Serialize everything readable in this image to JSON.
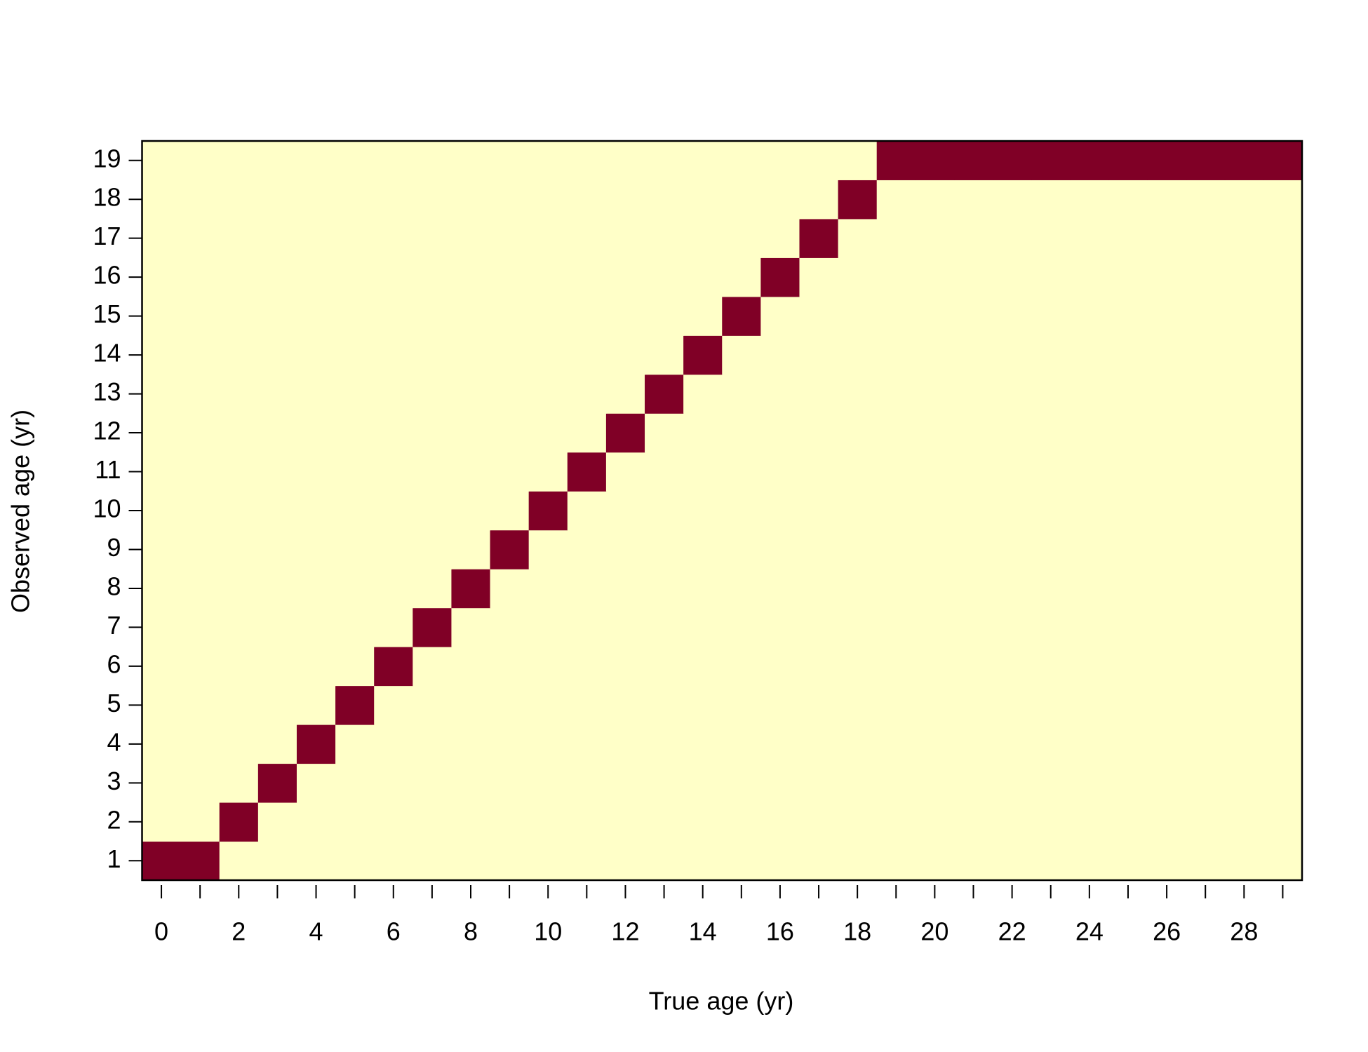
{
  "chart_data": {
    "type": "heatmap",
    "x_label": "True age (yr)",
    "y_label": "Observed age (yr)",
    "x": [
      0,
      1,
      2,
      3,
      4,
      5,
      6,
      7,
      8,
      9,
      10,
      11,
      12,
      13,
      14,
      15,
      16,
      17,
      18,
      19,
      20,
      21,
      22,
      23,
      24,
      25,
      26,
      27,
      28,
      29
    ],
    "y": [
      1,
      2,
      3,
      4,
      5,
      6,
      7,
      8,
      9,
      10,
      11,
      12,
      13,
      14,
      15,
      16,
      17,
      18,
      19
    ],
    "z": [
      [
        1,
        1,
        0,
        0,
        0,
        0,
        0,
        0,
        0,
        0,
        0,
        0,
        0,
        0,
        0,
        0,
        0,
        0,
        0,
        0,
        0,
        0,
        0,
        0,
        0,
        0,
        0,
        0,
        0,
        0
      ],
      [
        0,
        0,
        1,
        0,
        0,
        0,
        0,
        0,
        0,
        0,
        0,
        0,
        0,
        0,
        0,
        0,
        0,
        0,
        0,
        0,
        0,
        0,
        0,
        0,
        0,
        0,
        0,
        0,
        0,
        0
      ],
      [
        0,
        0,
        0,
        1,
        0,
        0,
        0,
        0,
        0,
        0,
        0,
        0,
        0,
        0,
        0,
        0,
        0,
        0,
        0,
        0,
        0,
        0,
        0,
        0,
        0,
        0,
        0,
        0,
        0,
        0
      ],
      [
        0,
        0,
        0,
        0,
        1,
        0,
        0,
        0,
        0,
        0,
        0,
        0,
        0,
        0,
        0,
        0,
        0,
        0,
        0,
        0,
        0,
        0,
        0,
        0,
        0,
        0,
        0,
        0,
        0,
        0
      ],
      [
        0,
        0,
        0,
        0,
        0,
        1,
        0,
        0,
        0,
        0,
        0,
        0,
        0,
        0,
        0,
        0,
        0,
        0,
        0,
        0,
        0,
        0,
        0,
        0,
        0,
        0,
        0,
        0,
        0,
        0
      ],
      [
        0,
        0,
        0,
        0,
        0,
        0,
        1,
        0,
        0,
        0,
        0,
        0,
        0,
        0,
        0,
        0,
        0,
        0,
        0,
        0,
        0,
        0,
        0,
        0,
        0,
        0,
        0,
        0,
        0,
        0
      ],
      [
        0,
        0,
        0,
        0,
        0,
        0,
        0,
        1,
        0,
        0,
        0,
        0,
        0,
        0,
        0,
        0,
        0,
        0,
        0,
        0,
        0,
        0,
        0,
        0,
        0,
        0,
        0,
        0,
        0,
        0
      ],
      [
        0,
        0,
        0,
        0,
        0,
        0,
        0,
        0,
        1,
        0,
        0,
        0,
        0,
        0,
        0,
        0,
        0,
        0,
        0,
        0,
        0,
        0,
        0,
        0,
        0,
        0,
        0,
        0,
        0,
        0
      ],
      [
        0,
        0,
        0,
        0,
        0,
        0,
        0,
        0,
        0,
        1,
        0,
        0,
        0,
        0,
        0,
        0,
        0,
        0,
        0,
        0,
        0,
        0,
        0,
        0,
        0,
        0,
        0,
        0,
        0,
        0
      ],
      [
        0,
        0,
        0,
        0,
        0,
        0,
        0,
        0,
        0,
        0,
        1,
        0,
        0,
        0,
        0,
        0,
        0,
        0,
        0,
        0,
        0,
        0,
        0,
        0,
        0,
        0,
        0,
        0,
        0,
        0
      ],
      [
        0,
        0,
        0,
        0,
        0,
        0,
        0,
        0,
        0,
        0,
        0,
        1,
        0,
        0,
        0,
        0,
        0,
        0,
        0,
        0,
        0,
        0,
        0,
        0,
        0,
        0,
        0,
        0,
        0,
        0
      ],
      [
        0,
        0,
        0,
        0,
        0,
        0,
        0,
        0,
        0,
        0,
        0,
        0,
        1,
        0,
        0,
        0,
        0,
        0,
        0,
        0,
        0,
        0,
        0,
        0,
        0,
        0,
        0,
        0,
        0,
        0
      ],
      [
        0,
        0,
        0,
        0,
        0,
        0,
        0,
        0,
        0,
        0,
        0,
        0,
        0,
        1,
        0,
        0,
        0,
        0,
        0,
        0,
        0,
        0,
        0,
        0,
        0,
        0,
        0,
        0,
        0,
        0
      ],
      [
        0,
        0,
        0,
        0,
        0,
        0,
        0,
        0,
        0,
        0,
        0,
        0,
        0,
        0,
        1,
        0,
        0,
        0,
        0,
        0,
        0,
        0,
        0,
        0,
        0,
        0,
        0,
        0,
        0,
        0
      ],
      [
        0,
        0,
        0,
        0,
        0,
        0,
        0,
        0,
        0,
        0,
        0,
        0,
        0,
        0,
        0,
        1,
        0,
        0,
        0,
        0,
        0,
        0,
        0,
        0,
        0,
        0,
        0,
        0,
        0,
        0
      ],
      [
        0,
        0,
        0,
        0,
        0,
        0,
        0,
        0,
        0,
        0,
        0,
        0,
        0,
        0,
        0,
        0,
        1,
        0,
        0,
        0,
        0,
        0,
        0,
        0,
        0,
        0,
        0,
        0,
        0,
        0
      ],
      [
        0,
        0,
        0,
        0,
        0,
        0,
        0,
        0,
        0,
        0,
        0,
        0,
        0,
        0,
        0,
        0,
        0,
        1,
        0,
        0,
        0,
        0,
        0,
        0,
        0,
        0,
        0,
        0,
        0,
        0
      ],
      [
        0,
        0,
        0,
        0,
        0,
        0,
        0,
        0,
        0,
        0,
        0,
        0,
        0,
        0,
        0,
        0,
        0,
        0,
        1,
        0,
        0,
        0,
        0,
        0,
        0,
        0,
        0,
        0,
        0,
        0
      ],
      [
        0,
        0,
        0,
        0,
        0,
        0,
        0,
        0,
        0,
        0,
        0,
        0,
        0,
        0,
        0,
        0,
        0,
        0,
        0,
        1,
        1,
        1,
        1,
        1,
        1,
        1,
        1,
        1,
        1,
        1
      ]
    ],
    "colors": [
      "#ffffc8",
      "#800026"
    ],
    "xlim": [
      -0.5,
      29.5
    ],
    "ylim": [
      0.5,
      19.5
    ],
    "xticks": [
      0,
      2,
      4,
      6,
      8,
      10,
      12,
      14,
      16,
      18,
      20,
      22,
      24,
      26,
      28
    ],
    "xminorticks": [
      1,
      3,
      5,
      7,
      9,
      11,
      13,
      15,
      17,
      19,
      21,
      23,
      25,
      27,
      29
    ],
    "yticks": [
      1,
      2,
      3,
      4,
      5,
      6,
      7,
      8,
      9,
      10,
      11,
      12,
      13,
      14,
      15,
      16,
      17,
      18,
      19
    ]
  }
}
